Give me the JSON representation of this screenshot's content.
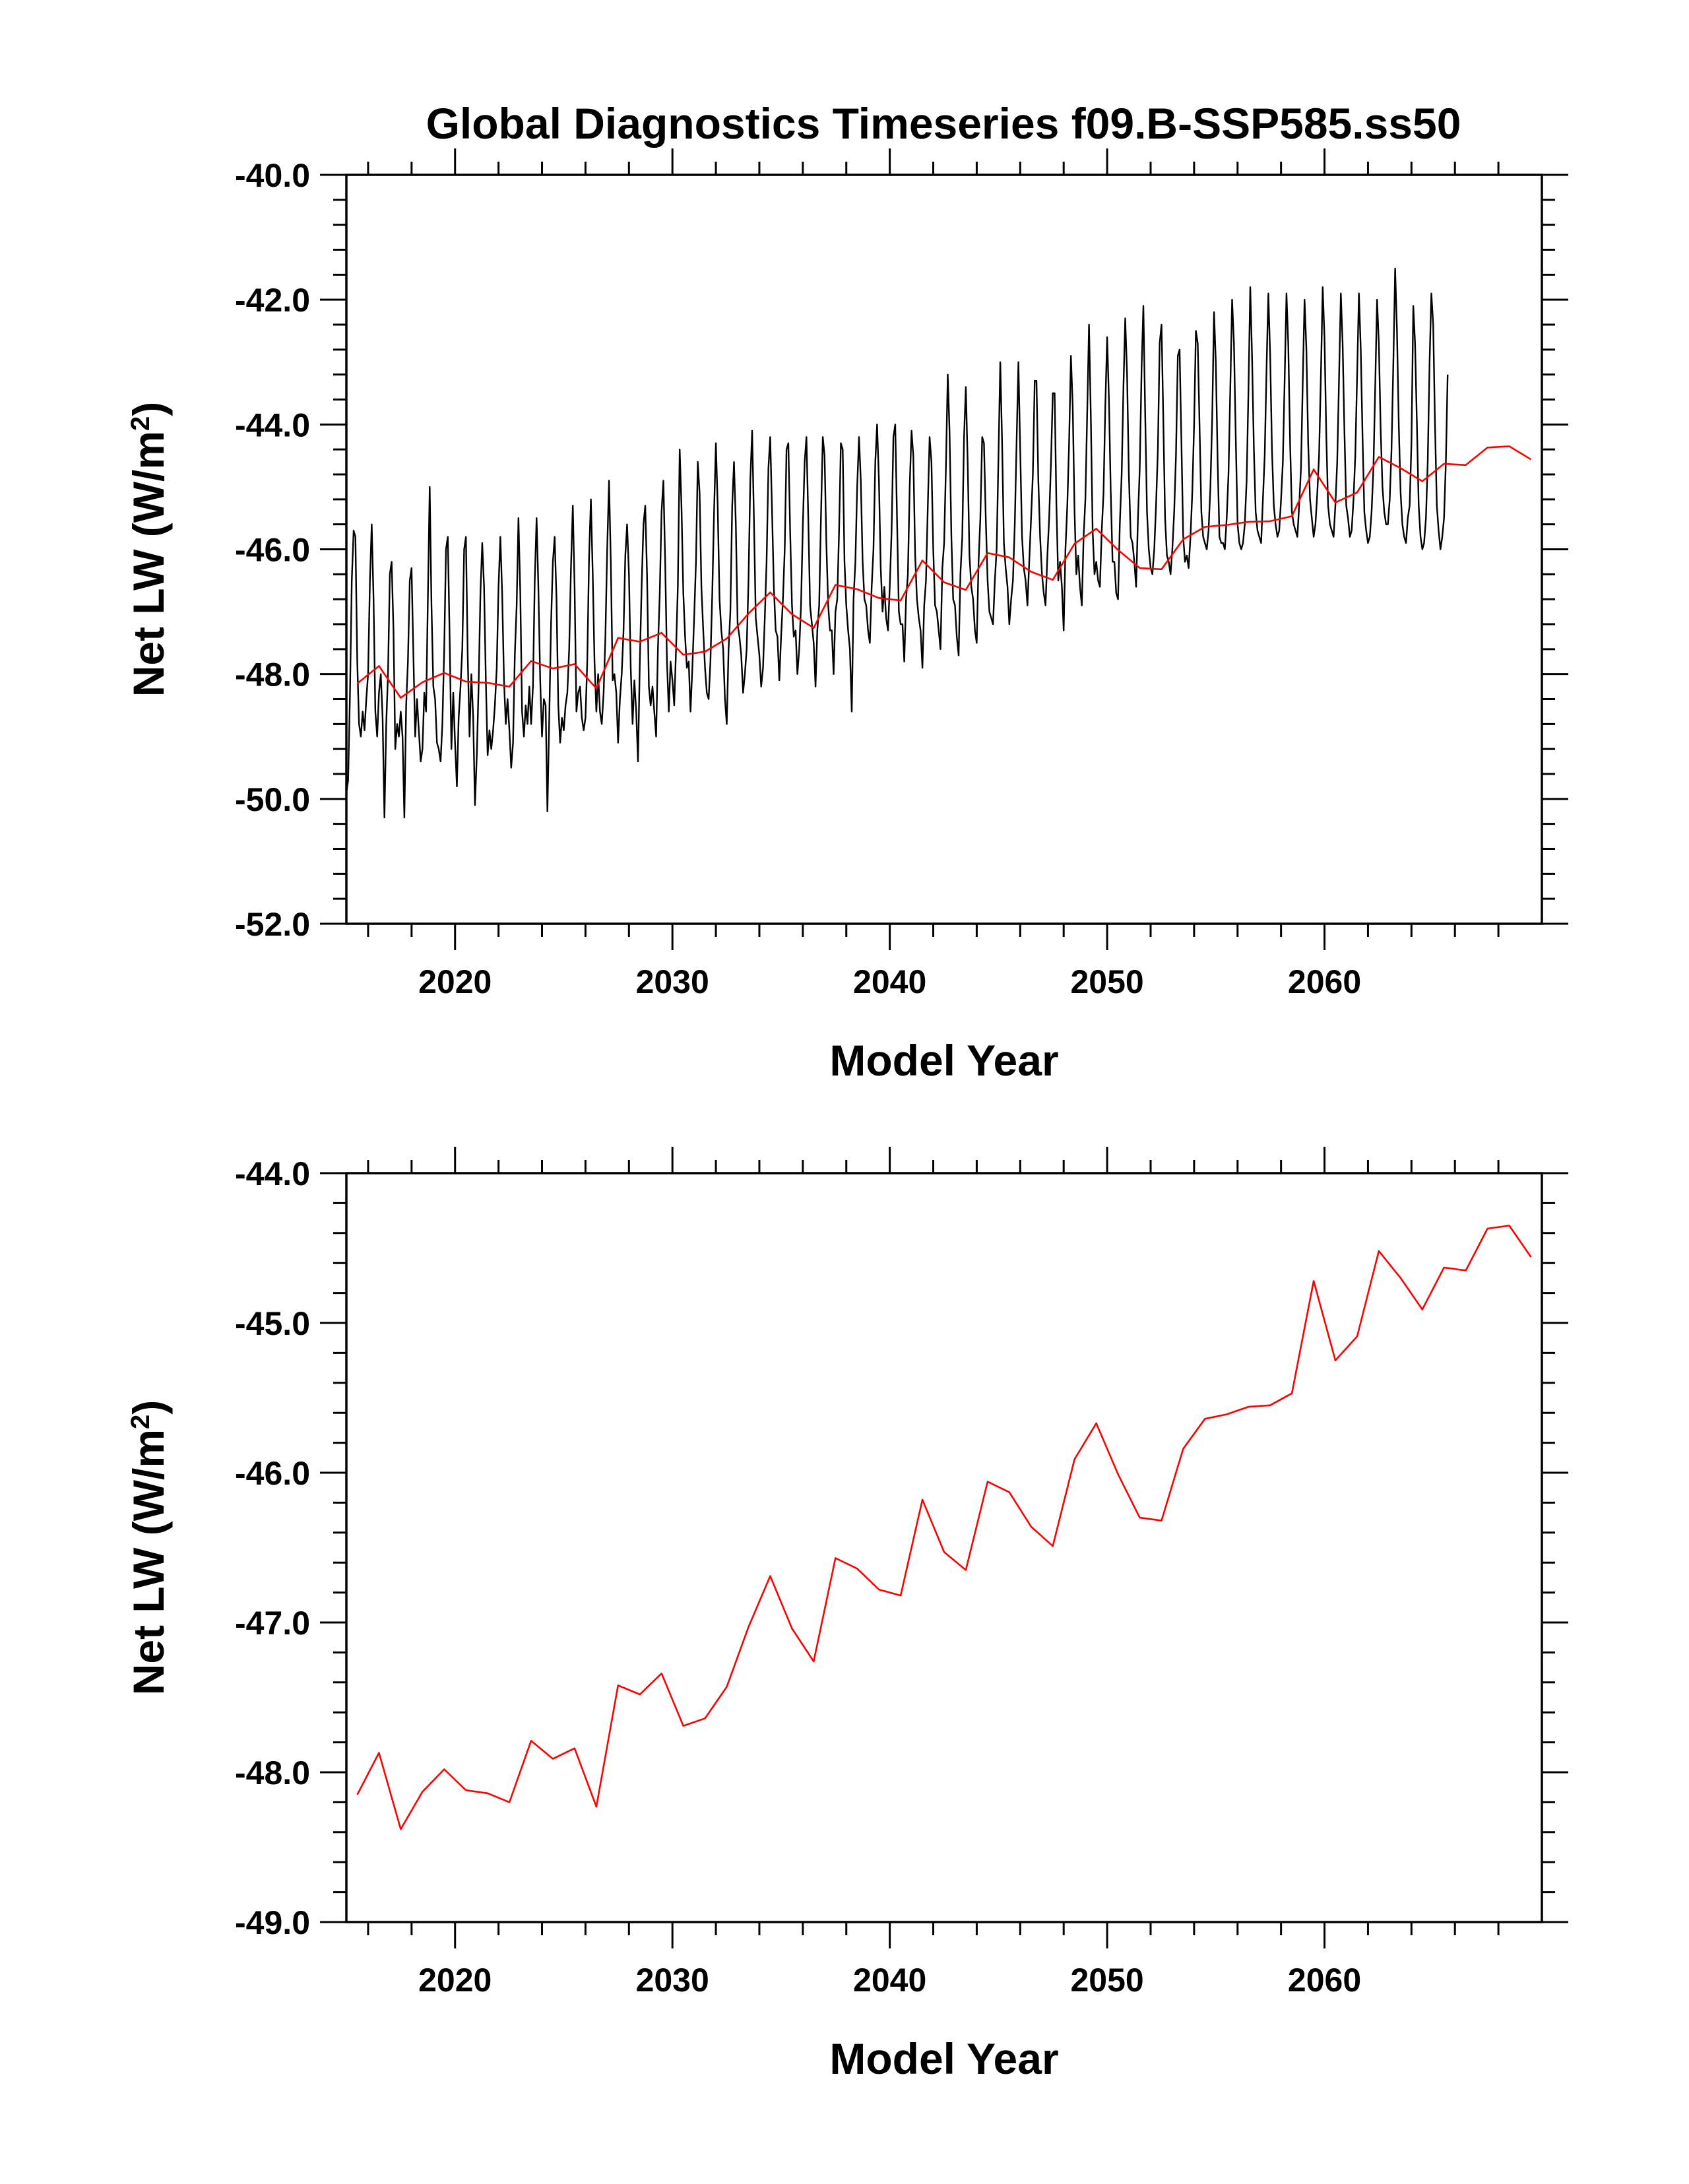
{
  "title": "Global Diagnostics Timeseries f09.B-SSP585.ss50",
  "colors": {
    "monthly": "#000000",
    "annual": "#ff0000",
    "axes": "#000000",
    "background": "#ffffff"
  },
  "chart_data": [
    {
      "type": "line",
      "title": "Global Diagnostics Timeseries f09.B-SSP585.ss50",
      "xlabel": "Model Year",
      "ylabel_main": "Net LW (W/m",
      "ylabel_sup": "2",
      "ylabel_close": ")",
      "xlim": [
        2015,
        2070
      ],
      "ylim": [
        -52.0,
        -40.0
      ],
      "xticks": [
        2020,
        2030,
        2040,
        2050,
        2060
      ],
      "xtick_labels": [
        "2020",
        "2030",
        "2040",
        "2050",
        "2060"
      ],
      "yticks": [
        -52.0,
        -50.0,
        -48.0,
        -46.0,
        -44.0,
        -42.0,
        -40.0
      ],
      "ytick_labels": [
        "-52.0",
        "-50.0",
        "-48.0",
        "-46.0",
        "-44.0",
        "-42.0",
        "-40.0"
      ],
      "legend": "none",
      "grid": false,
      "series": [
        {
          "color": "#000000",
          "sampling": "monthly",
          "x_start": 2015.0,
          "x_step": 0.0833333,
          "values": [
            -49.9,
            -49.7,
            -48.3,
            -46.5,
            -45.7,
            -45.8,
            -47.8,
            -48.8,
            -49.0,
            -48.6,
            -48.9,
            -48.4,
            -48.0,
            -46.5,
            -45.6,
            -46.8,
            -48.6,
            -49.0,
            -48.3,
            -48.0,
            -48.7,
            -50.3,
            -48.8,
            -48.0,
            -46.4,
            -46.2,
            -47.3,
            -49.2,
            -48.8,
            -49.0,
            -48.6,
            -49.0,
            -50.3,
            -48.5,
            -47.8,
            -46.5,
            -46.3,
            -47.7,
            -49.0,
            -48.4,
            -48.9,
            -49.4,
            -49.2,
            -48.3,
            -48.6,
            -46.8,
            -45.0,
            -46.9,
            -48.2,
            -48.4,
            -49.1,
            -49.2,
            -49.4,
            -48.8,
            -47.6,
            -46.0,
            -45.8,
            -47.4,
            -49.2,
            -48.3,
            -49.1,
            -49.8,
            -48.7,
            -48.2,
            -47.6,
            -46.0,
            -45.8,
            -47.7,
            -49.0,
            -48.0,
            -48.7,
            -50.1,
            -49.3,
            -48.2,
            -46.7,
            -45.9,
            -46.6,
            -48.1,
            -49.3,
            -48.9,
            -49.2,
            -48.9,
            -48.5,
            -47.9,
            -46.6,
            -45.8,
            -46.7,
            -48.1,
            -48.8,
            -48.4,
            -48.9,
            -49.5,
            -49.1,
            -47.7,
            -46.9,
            -45.5,
            -46.7,
            -48.6,
            -49.0,
            -48.5,
            -48.8,
            -48.2,
            -48.8,
            -48.2,
            -46.5,
            -45.5,
            -46.6,
            -48.1,
            -49.0,
            -48.4,
            -48.5,
            -50.2,
            -48.7,
            -47.2,
            -46.2,
            -45.8,
            -46.8,
            -48.5,
            -49.1,
            -48.7,
            -48.9,
            -48.5,
            -48.3,
            -47.6,
            -46.3,
            -45.3,
            -46.6,
            -48.6,
            -48.3,
            -48.2,
            -48.7,
            -48.9,
            -48.7,
            -47.8,
            -46.1,
            -45.2,
            -46.4,
            -47.8,
            -48.6,
            -48.0,
            -48.6,
            -48.8,
            -48.3,
            -47.4,
            -46.0,
            -44.9,
            -46.2,
            -48.1,
            -48.0,
            -48.3,
            -49.1,
            -48.4,
            -48.0,
            -47.3,
            -46.1,
            -45.6,
            -46.4,
            -47.9,
            -48.8,
            -48.1,
            -48.6,
            -49.4,
            -47.8,
            -46.6,
            -45.6,
            -45.3,
            -46.4,
            -48.2,
            -48.5,
            -48.2,
            -48.6,
            -49.0,
            -47.6,
            -46.7,
            -45.4,
            -44.9,
            -46.2,
            -47.8,
            -48.6,
            -47.8,
            -48.1,
            -48.5,
            -47.6,
            -46.6,
            -44.4,
            -45.3,
            -46.7,
            -47.4,
            -47.9,
            -47.8,
            -48.6,
            -47.9,
            -47.1,
            -46.2,
            -44.6,
            -45.1,
            -46.6,
            -47.3,
            -47.9,
            -48.3,
            -48.4,
            -47.8,
            -46.7,
            -45.4,
            -44.3,
            -45.3,
            -46.8,
            -47.3,
            -47.6,
            -48.4,
            -48.8,
            -47.6,
            -47.0,
            -45.3,
            -44.6,
            -45.6,
            -47.2,
            -47.4,
            -47.7,
            -48.3,
            -48.0,
            -47.6,
            -46.5,
            -44.9,
            -44.1,
            -45.5,
            -47.1,
            -47.4,
            -47.7,
            -48.2,
            -47.9,
            -47.1,
            -46.2,
            -44.7,
            -44.2,
            -45.4,
            -46.6,
            -47.3,
            -47.4,
            -48.1,
            -47.4,
            -46.8,
            -46.0,
            -44.4,
            -44.3,
            -45.7,
            -46.9,
            -47.4,
            -47.3,
            -48.0,
            -47.6,
            -46.9,
            -45.6,
            -44.6,
            -44.2,
            -45.5,
            -46.9,
            -47.2,
            -47.5,
            -48.2,
            -47.3,
            -46.9,
            -45.5,
            -44.2,
            -44.5,
            -45.9,
            -46.9,
            -47.3,
            -47.3,
            -48.0,
            -47.0,
            -46.8,
            -45.7,
            -44.3,
            -44.4,
            -46.2,
            -46.9,
            -47.3,
            -47.6,
            -48.6,
            -46.8,
            -46.2,
            -45.0,
            -44.2,
            -44.9,
            -46.2,
            -46.8,
            -46.9,
            -47.3,
            -47.5,
            -46.6,
            -46.0,
            -44.6,
            -44.0,
            -44.9,
            -46.3,
            -47.0,
            -46.6,
            -47.1,
            -47.3,
            -46.6,
            -45.7,
            -44.2,
            -44.0,
            -45.5,
            -47.0,
            -47.2,
            -47.2,
            -47.8,
            -46.8,
            -46.4,
            -45.0,
            -44.1,
            -44.5,
            -46.1,
            -46.8,
            -47.1,
            -47.3,
            -47.9,
            -46.9,
            -46.5,
            -45.3,
            -44.2,
            -44.6,
            -46.0,
            -46.9,
            -47.0,
            -47.3,
            -47.6,
            -46.3,
            -45.9,
            -44.7,
            -43.2,
            -44.1,
            -45.8,
            -46.8,
            -46.9,
            -47.4,
            -47.7,
            -46.4,
            -45.8,
            -44.2,
            -43.4,
            -44.6,
            -46.1,
            -46.6,
            -46.8,
            -47.3,
            -47.5,
            -46.2,
            -45.5,
            -44.2,
            -44.3,
            -45.5,
            -46.5,
            -47.0,
            -47.1,
            -47.2,
            -46.5,
            -46.0,
            -44.5,
            -43.0,
            -44.3,
            -45.9,
            -46.3,
            -46.6,
            -47.2,
            -46.8,
            -46.5,
            -45.6,
            -44.3,
            -43.0,
            -44.4,
            -45.8,
            -46.3,
            -46.5,
            -46.9,
            -46.2,
            -45.5,
            -44.8,
            -43.3,
            -43.3,
            -44.9,
            -45.8,
            -46.4,
            -46.7,
            -46.9,
            -46.1,
            -45.5,
            -44.6,
            -43.5,
            -43.5,
            -45.3,
            -46.5,
            -46.2,
            -46.6,
            -47.3,
            -46.0,
            -45.3,
            -44.3,
            -42.9,
            -43.7,
            -45.4,
            -46.4,
            -46.1,
            -46.6,
            -46.9,
            -45.8,
            -45.2,
            -43.8,
            -42.4,
            -43.9,
            -45.7,
            -46.4,
            -46.2,
            -46.5,
            -46.6,
            -45.7,
            -45.1,
            -43.7,
            -42.6,
            -43.6,
            -45.1,
            -46.2,
            -46.2,
            -46.7,
            -46.8,
            -45.6,
            -44.8,
            -43.4,
            -42.3,
            -43.2,
            -44.8,
            -45.8,
            -45.9,
            -46.2,
            -46.6,
            -45.5,
            -44.7,
            -43.1,
            -42.1,
            -43.8,
            -45.4,
            -46.0,
            -46.3,
            -46.4,
            -46.0,
            -45.3,
            -44.4,
            -42.7,
            -42.4,
            -43.9,
            -45.5,
            -46.1,
            -46.2,
            -46.4,
            -46.0,
            -45.4,
            -44.5,
            -42.9,
            -42.8,
            -44.3,
            -45.8,
            -46.2,
            -46.1,
            -46.3,
            -45.8,
            -45.1,
            -44.0,
            -42.5,
            -42.7,
            -44.0,
            -45.4,
            -45.8,
            -45.9,
            -46.0,
            -45.7,
            -45.0,
            -43.9,
            -42.2,
            -43.0,
            -44.6,
            -45.8,
            -45.9,
            -45.9,
            -46.0,
            -45.5,
            -44.8,
            -43.4,
            -42.0,
            -42.7,
            -44.2,
            -45.6,
            -45.9,
            -46.0,
            -45.9,
            -45.6,
            -44.9,
            -43.5,
            -41.8,
            -42.9,
            -44.4,
            -45.4,
            -45.7,
            -45.8,
            -45.9,
            -45.2,
            -44.5,
            -43.1,
            -41.9,
            -42.9,
            -44.4,
            -45.3,
            -45.6,
            -45.8,
            -45.7,
            -45.2,
            -44.6,
            -43.3,
            -41.9,
            -42.7,
            -44.3,
            -45.4,
            -45.6,
            -45.7,
            -45.8,
            -45.3,
            -44.7,
            -43.3,
            -42.0,
            -42.8,
            -44.3,
            -45.2,
            -45.5,
            -45.8,
            -45.6,
            -45.1,
            -44.5,
            -43.2,
            -41.8,
            -42.6,
            -44.2,
            -45.3,
            -45.6,
            -45.7,
            -45.8,
            -45.3,
            -44.6,
            -43.3,
            -41.9,
            -42.7,
            -44.1,
            -45.3,
            -45.5,
            -45.8,
            -45.7,
            -45.2,
            -44.5,
            -43.2,
            -41.9,
            -42.8,
            -44.2,
            -45.4,
            -45.7,
            -45.9,
            -45.8,
            -45.4,
            -44.7,
            -43.4,
            -42.0,
            -42.7,
            -44.1,
            -45.0,
            -45.4,
            -45.6,
            -45.6,
            -45.2,
            -44.4,
            -43.0,
            -41.5,
            -42.5,
            -44.0,
            -45.1,
            -45.6,
            -45.8,
            -45.9,
            -45.5,
            -45.3,
            -44.3,
            -42.1,
            -42.7,
            -44.0,
            -45.3,
            -45.8,
            -46.0,
            -45.9,
            -45.5,
            -44.6,
            -43.0,
            -41.9,
            -42.4,
            -44.0,
            -45.3,
            -45.7,
            -46.0,
            -45.8,
            -45.5,
            -44.6,
            -43.2
          ]
        },
        {
          "color": "#ff0000",
          "sampling": "annual",
          "x": [
            2015.5,
            2016.5,
            2017.5,
            2018.5,
            2019.5,
            2020.5,
            2021.5,
            2022.5,
            2023.5,
            2024.5,
            2025.5,
            2026.5,
            2027.5,
            2028.5,
            2029.5,
            2030.5,
            2031.5,
            2032.5,
            2033.5,
            2034.5,
            2035.5,
            2036.5,
            2037.5,
            2038.5,
            2039.5,
            2040.5,
            2041.5,
            2042.5,
            2043.5,
            2044.5,
            2045.5,
            2046.5,
            2047.5,
            2048.5,
            2049.5,
            2050.5,
            2051.5,
            2052.5,
            2053.5,
            2054.5,
            2055.5,
            2056.5,
            2057.5,
            2058.5,
            2059.5,
            2060.5,
            2061.5,
            2062.5,
            2063.5,
            2064.5,
            2065.5,
            2066.5,
            2067.5,
            2068.5,
            2069.5
          ],
          "values": [
            -48.15,
            -47.87,
            -48.38,
            -48.13,
            -47.98,
            -48.12,
            -48.14,
            -48.2,
            -47.79,
            -47.91,
            -47.84,
            -48.23,
            -47.42,
            -47.48,
            -47.34,
            -47.69,
            -47.64,
            -47.43,
            -47.03,
            -46.69,
            -47.04,
            -47.26,
            -46.57,
            -46.64,
            -46.78,
            -46.82,
            -46.18,
            -46.53,
            -46.65,
            -46.06,
            -46.13,
            -46.36,
            -46.49,
            -45.91,
            -45.67,
            -46.01,
            -46.3,
            -46.32,
            -45.84,
            -45.64,
            -45.61,
            -45.56,
            -45.55,
            -45.47,
            -44.72,
            -45.25,
            -45.09,
            -44.52,
            -44.7,
            -44.91,
            -44.63,
            -44.65,
            -44.37,
            -44.35,
            -44.56
          ]
        }
      ]
    },
    {
      "type": "line",
      "xlabel": "Model Year",
      "ylabel_main": "Net LW (W/m",
      "ylabel_sup": "2",
      "ylabel_close": ")",
      "xlim": [
        2015,
        2070
      ],
      "ylim": [
        -49.0,
        -44.0
      ],
      "xticks": [
        2020,
        2030,
        2040,
        2050,
        2060
      ],
      "xtick_labels": [
        "2020",
        "2030",
        "2040",
        "2050",
        "2060"
      ],
      "yticks": [
        -49.0,
        -48.0,
        -47.0,
        -46.0,
        -45.0,
        -44.0
      ],
      "ytick_labels": [
        "-49.0",
        "-48.0",
        "-47.0",
        "-46.0",
        "-45.0",
        "-44.0"
      ],
      "legend": "none",
      "grid": false,
      "series": [
        {
          "color": "#ff0000",
          "sampling": "annual",
          "x": [
            2015.5,
            2016.5,
            2017.5,
            2018.5,
            2019.5,
            2020.5,
            2021.5,
            2022.5,
            2023.5,
            2024.5,
            2025.5,
            2026.5,
            2027.5,
            2028.5,
            2029.5,
            2030.5,
            2031.5,
            2032.5,
            2033.5,
            2034.5,
            2035.5,
            2036.5,
            2037.5,
            2038.5,
            2039.5,
            2040.5,
            2041.5,
            2042.5,
            2043.5,
            2044.5,
            2045.5,
            2046.5,
            2047.5,
            2048.5,
            2049.5,
            2050.5,
            2051.5,
            2052.5,
            2053.5,
            2054.5,
            2055.5,
            2056.5,
            2057.5,
            2058.5,
            2059.5,
            2060.5,
            2061.5,
            2062.5,
            2063.5,
            2064.5,
            2065.5,
            2066.5,
            2067.5,
            2068.5,
            2069.5
          ],
          "values": [
            -48.15,
            -47.87,
            -48.38,
            -48.13,
            -47.98,
            -48.12,
            -48.14,
            -48.2,
            -47.79,
            -47.91,
            -47.84,
            -48.23,
            -47.42,
            -47.48,
            -47.34,
            -47.69,
            -47.64,
            -47.43,
            -47.03,
            -46.69,
            -47.04,
            -47.26,
            -46.57,
            -46.64,
            -46.78,
            -46.82,
            -46.18,
            -46.53,
            -46.65,
            -46.06,
            -46.13,
            -46.36,
            -46.49,
            -45.91,
            -45.67,
            -46.01,
            -46.3,
            -46.32,
            -45.84,
            -45.64,
            -45.61,
            -45.56,
            -45.55,
            -45.47,
            -44.72,
            -45.25,
            -45.09,
            -44.52,
            -44.7,
            -44.91,
            -44.63,
            -44.65,
            -44.37,
            -44.35,
            -44.56
          ]
        }
      ]
    }
  ]
}
